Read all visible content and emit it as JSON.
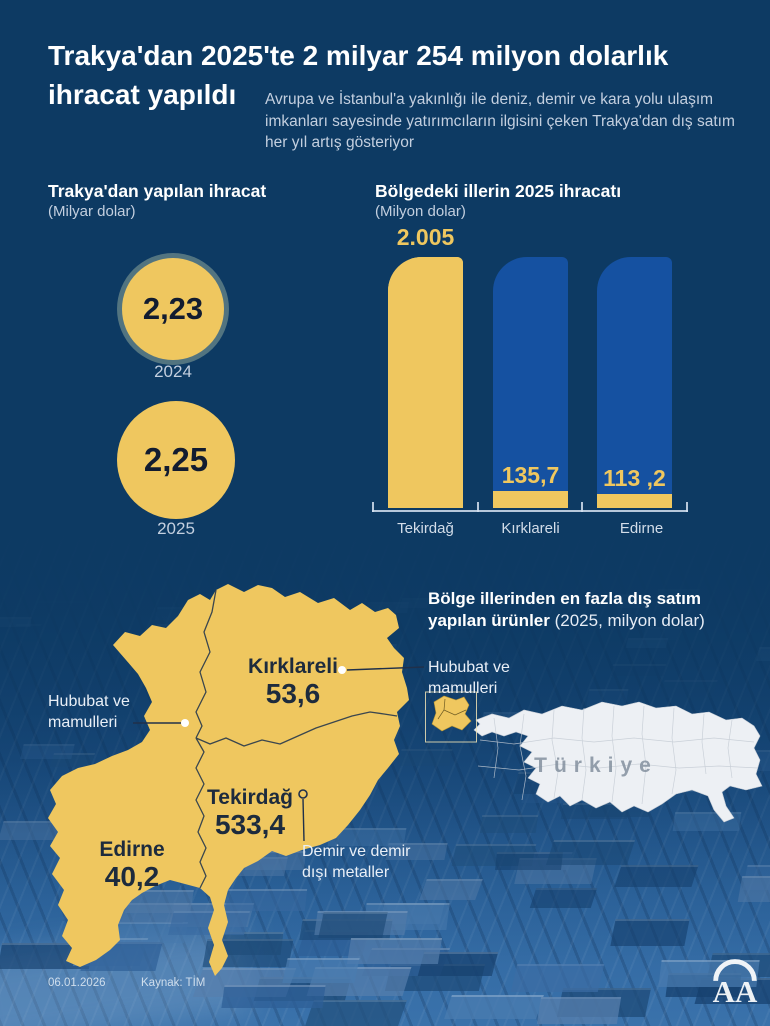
{
  "header": {
    "title_line1": "Trakya'dan 2025'te 2 milyar 254 milyon dolarlık",
    "title_line2": "ihracat yapıldı",
    "subtitle": "Avrupa ve İstanbul'a yakınlığı ile deniz, demir ve kara yolu ulaşım imkanları sayesinde yatırımcıların ilgisini çeken Trakya'dan dış satım her yıl artış gösteriyor"
  },
  "colors": {
    "background": "#0d3a63",
    "accent_yellow": "#efc75f",
    "bar_blue": "#1551a1",
    "dark_text_on_yellow": "#121c30",
    "muted_text": "#c3cfdf"
  },
  "chart_data": [
    {
      "type": "bar",
      "variant": "circle-badges",
      "title": "Trakya'dan yapılan ihracat",
      "unit": "(Milyar dolar)",
      "categories": [
        "2024",
        "2025"
      ],
      "values": [
        2.23,
        2.25
      ],
      "value_labels": [
        "2,23",
        "2,25"
      ]
    },
    {
      "type": "bar",
      "title": "Bölgedeki illerin 2025 ihracatı",
      "unit": "(Milyon dolar)",
      "categories": [
        "Tekirdağ",
        "Kırklareli",
        "Edirne"
      ],
      "values": [
        2005,
        135.7,
        113.2
      ],
      "value_labels": [
        "2.005",
        "135,7",
        "113 ,2"
      ],
      "ylim": [
        0,
        2005
      ],
      "bar_colors": [
        "#efc75f",
        "#1551a1",
        "#1551a1"
      ],
      "legend": "none",
      "grid": false
    },
    {
      "type": "map",
      "title": "Bölge illerinden en fazla dış satım yapılan ürünler",
      "subtitle": "(2025, milyon dolar)",
      "regions": [
        {
          "name": "Kırklareli",
          "value": 53.6,
          "value_label": "53,6",
          "top_product": "Hububat ve mamulleri"
        },
        {
          "name": "Tekirdağ",
          "value": 533.4,
          "value_label": "533,4",
          "top_product": "Demir ve demir dışı metaller"
        },
        {
          "name": "Edirne",
          "value": 40.2,
          "value_label": "40,2",
          "top_product": "Hububat ve mamulleri"
        }
      ],
      "country_label": "Türkiye"
    }
  ],
  "map_header": {
    "bold1": "Bölge illerinden en fazla dış satım",
    "bold2": "yapılan ürünler",
    "note": " (2025, milyon dolar)"
  },
  "annotations": {
    "left": "Hububat ve\nmamulleri",
    "right": "Hububat ve\nmamulleri",
    "bottom": "Demir ve demir\ndışı metaller"
  },
  "footer": {
    "date": "06.01.2026",
    "source": "Kaynak: TİM",
    "agency": "AA"
  }
}
